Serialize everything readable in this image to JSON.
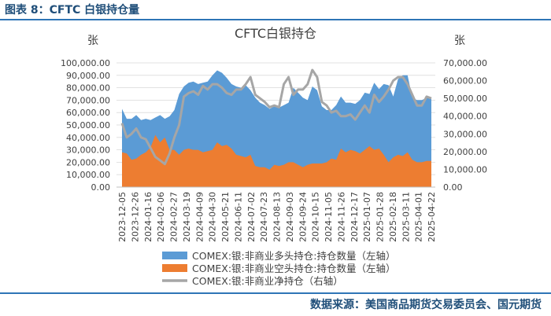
{
  "figure_label": "图表 8：CFTC 白银持仓量",
  "source_note": "数据来源：美国商品期货交易委员会、国元期货",
  "chart_data": {
    "type": "area",
    "title": "CFTC白银持仓",
    "left_unit": "张",
    "right_unit": "张",
    "left_ylim": [
      0,
      100000
    ],
    "right_ylim": [
      0,
      70000
    ],
    "left_ticks": [
      "0.00",
      "10,000.00",
      "20,000.00",
      "30,000.00",
      "40,000.00",
      "50,000.00",
      "60,000.00",
      "70,000.00",
      "80,000.00",
      "90,000.00",
      "100,000.00"
    ],
    "right_ticks": [
      "0.00",
      "10,000.00",
      "20,000.00",
      "30,000.00",
      "40,000.00",
      "50,000.00",
      "60,000.00",
      "70,000.00"
    ],
    "x_tick_labels": [
      "2023-12-05",
      "2023-12-26",
      "2024-01-16",
      "2024-02-06",
      "2024-02-27",
      "2024-03-19",
      "2024-04-09",
      "2024-04-30",
      "2024-05-21",
      "2024-06-11",
      "2024-07-02",
      "2024-07-23",
      "2024-08-13",
      "2024-09-03",
      "2024-09-24",
      "2024-10-15",
      "2024-11-05",
      "2024-11-26",
      "2024-12-17",
      "2025-01-07",
      "2025-01-28",
      "2025-02-18",
      "2025-03-11",
      "2025-04-01",
      "2025-04-22"
    ],
    "series": [
      {
        "name": "COMEX:银:非商业多头持仓:持仓数量（左轴）",
        "axis": "left",
        "style": "area",
        "color": "#5b9bd5",
        "values": [
          63000,
          55000,
          55000,
          58000,
          54000,
          55000,
          54000,
          56000,
          58000,
          55000,
          57000,
          62000,
          75000,
          81000,
          84000,
          85000,
          83000,
          84000,
          85000,
          90000,
          94000,
          92000,
          88000,
          83000,
          81000,
          80000,
          82000,
          78000,
          72000,
          68000,
          66000,
          63000,
          65000,
          64000,
          66000,
          68000,
          80000,
          76000,
          72000,
          70000,
          81000,
          78000,
          65000,
          62000,
          62000,
          66000,
          73000,
          68000,
          68000,
          67000,
          70000,
          76000,
          75000,
          84000,
          79000,
          83000,
          82000,
          73000,
          87000,
          90000,
          90000,
          72000,
          70000,
          70000,
          72000,
          71000
        ]
      },
      {
        "name": "COMEX:银:非商业空头持仓:持仓数量（左轴）",
        "axis": "left",
        "style": "area",
        "color": "#ed7d31",
        "values": [
          28000,
          27000,
          22000,
          23000,
          26000,
          28000,
          32000,
          42000,
          36000,
          40000,
          30000,
          30000,
          26000,
          30000,
          31000,
          30000,
          30000,
          28000,
          29000,
          30000,
          36000,
          33000,
          34000,
          31000,
          26000,
          25000,
          24000,
          26000,
          17000,
          16000,
          16000,
          14000,
          18000,
          17000,
          18000,
          20000,
          20000,
          18000,
          16000,
          18000,
          19000,
          19000,
          19000,
          20000,
          23000,
          22000,
          31000,
          28000,
          30000,
          29000,
          27000,
          30000,
          33000,
          30000,
          31000,
          26000,
          20000,
          24000,
          26000,
          25000,
          28000,
          22000,
          20000,
          20000,
          21000,
          21000
        ]
      },
      {
        "name": "COMEX:银:非商业净持仓（右轴）",
        "axis": "right",
        "style": "line",
        "color": "#a6a6a6",
        "values": [
          36000,
          28000,
          30000,
          33000,
          28000,
          27000,
          22000,
          17000,
          15000,
          13000,
          19000,
          28000,
          35000,
          51000,
          53000,
          54000,
          52000,
          57000,
          55000,
          58000,
          58000,
          56000,
          53000,
          52000,
          55000,
          55000,
          58000,
          62000,
          52000,
          50000,
          48000,
          45000,
          46000,
          45000,
          58000,
          62000,
          52000,
          55000,
          55000,
          58000,
          66000,
          62000,
          48000,
          46000,
          42000,
          43000,
          40000,
          40000,
          41000,
          38000,
          42000,
          46000,
          42000,
          52000,
          48000,
          51000,
          55000,
          60000,
          62000,
          62000,
          58000,
          52000,
          46000,
          46000,
          51000,
          50000
        ]
      }
    ]
  }
}
